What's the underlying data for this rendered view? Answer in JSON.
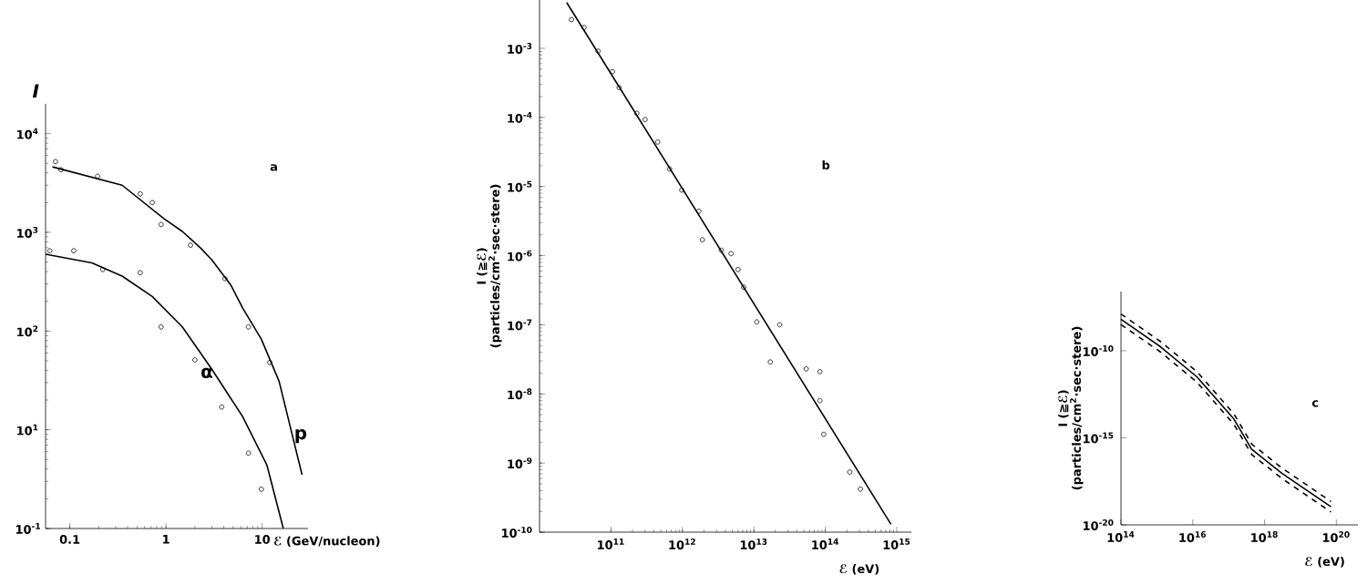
{
  "chart_data": [
    {
      "type": "line",
      "log": "xy",
      "xlabel": "ℰ (GeV/nucleon)",
      "ylabel": "I",
      "annotations": [
        "a",
        "10$^{-1}$"
      ],
      "legend": false,
      "marker": "none",
      "xlim": [
        0.056,
        30
      ],
      "ylim": [
        1,
        20000
      ],
      "xticks": [
        0.1,
        1,
        10
      ],
      "yticks": [
        {
          "value": 1,
          "label": null
        },
        {
          "value": 10,
          "label": "10$^{1}$"
        },
        {
          "value": 100,
          "label": "10$^{2}$"
        },
        {
          "value": 1000,
          "label": "10$^{3}$"
        },
        {
          "value": 10000,
          "label": "10$^{4}$"
        }
      ],
      "series": [
        {
          "name": "p",
          "type": "line",
          "color": "#000000",
          "x": [
            0.066,
            0.35,
            0.95,
            1.48,
            2.3,
            3.0,
            4.7,
            6.3,
            9.8,
            15,
            26
          ],
          "values": [
            4600,
            3000,
            1380,
            1020,
            690,
            525,
            295,
            170,
            83,
            31,
            3.5
          ]
        },
        {
          "name": "α",
          "type": "line",
          "color": "#000000",
          "x": [
            0.056,
            0.17,
            0.35,
            0.72,
            1.48,
            3.0,
            6.3,
            11.2,
            16.6
          ],
          "values": [
            600,
            490,
            360,
            224,
            110,
            41,
            13.5,
            4.4,
            1.0
          ]
        },
        {
          "type": "scatter",
          "marker": "circle",
          "color": "#000000",
          "x": [
            0.071,
            0.081,
            0.195,
            0.54,
            0.72,
            0.89,
            1.8,
            4.1,
            7.2,
            12
          ],
          "values": [
            5200,
            4300,
            3700,
            2450,
            2000,
            1200,
            740,
            340,
            110,
            48
          ]
        },
        {
          "type": "scatter",
          "marker": "circle",
          "color": "#000000",
          "x": [
            0.062,
            0.11,
            0.22,
            0.54,
            0.89,
            2.0,
            3.8,
            7.2,
            9.8
          ],
          "values": [
            650,
            650,
            420,
            390,
            110,
            51,
            17,
            5.8,
            2.5
          ]
        }
      ]
    },
    {
      "type": "scatter",
      "log": "xy",
      "xlabel": "ℰ (eV)",
      "ylabel": "I (≧ℰ) (particles/cm$^{2}$·sec·stere)",
      "annotations": [
        "b"
      ],
      "legend": false,
      "marker": "circle",
      "xlim": [
        10000000000.0,
        1600000000000000.0
      ],
      "ylim": [
        1e-10,
        0.005
      ],
      "xticks": [
        {
          "value": 100000000000.0,
          "label": "10$^{11}$"
        },
        {
          "value": 1000000000000.0,
          "label": "10$^{12}$"
        },
        {
          "value": 10000000000000.0,
          "label": "10$^{13}$"
        },
        {
          "value": 100000000000000.0,
          "label": "10$^{14}$"
        },
        {
          "value": 1000000000000000.0,
          "label": "10$^{15}$"
        }
      ],
      "yticks": [
        {
          "value": 1e-10,
          "label": "10$^{-10}$"
        },
        {
          "value": 1e-09,
          "label": "10$^{-9}$"
        },
        {
          "value": 1e-08,
          "label": "10$^{-8}$"
        },
        {
          "value": 1e-07,
          "label": "10$^{-7}$"
        },
        {
          "value": 1e-06,
          "label": "10$^{-6}$"
        },
        {
          "value": 1e-05,
          "label": "10$^{-5}$"
        },
        {
          "value": 0.0001,
          "label": "10$^{-4}$"
        },
        {
          "value": 0.001,
          "label": "10$^{-3}$"
        }
      ],
      "series": [
        {
          "type": "scatter",
          "color": "#000000",
          "x": [
            28000000000.0,
            42000000000.0,
            66000000000.0,
            105000000000.0,
            130000000000.0,
            230000000000.0,
            300000000000.0,
            450000000000.0,
            660000000000.0,
            980000000000.0,
            1700000000000.0,
            1900000000000.0,
            3500000000000.0,
            4800000000000.0,
            6000000000000.0,
            7200000000000.0,
            11000000000000.0,
            17000000000000.0,
            23000000000000.0,
            54000000000000.0,
            84000000000000.0,
            84000000000000.0,
            95000000000000.0,
            220000000000000.0,
            310000000000000.0
          ],
          "values": [
            0.0026,
            0.002,
            0.00091,
            0.00046,
            0.00027,
            0.000115,
            9.3e-05,
            4.4e-05,
            1.8e-05,
            8.9e-06,
            4.4e-06,
            1.7e-06,
            1.2e-06,
            1.07e-06,
            6.3e-07,
            3.5e-07,
            1.1e-07,
            2.9e-08,
            1e-07,
            2.3e-08,
            2.1e-08,
            8e-09,
            2.6e-09,
            7.4e-10,
            4.2e-10
          ]
        },
        {
          "type": "line",
          "marker": "none",
          "color": "#000000",
          "x": [
            24000000000.0,
            830000000000000.0
          ],
          "values": [
            0.0046,
            1.3e-10
          ]
        }
      ]
    },
    {
      "type": "line",
      "log": "xy",
      "xlabel": "ℰ (eV)",
      "ylabel": "I (≧ℰ) (particles/cm$^{2}$·sec·stere)",
      "annotations": [
        "c"
      ],
      "legend": false,
      "marker": "none",
      "xlim": [
        100000000000000.0,
        4e+20
      ],
      "ylim": [
        1e-20,
        2.5e-07
      ],
      "xticks": [
        {
          "value": 100000000000000.0,
          "label": "10$^{14}$"
        },
        {
          "value": 1e+16,
          "label": "10$^{16}$"
        },
        {
          "value": 1e+18,
          "label": "10$^{18}$"
        },
        {
          "value": 1e+20,
          "label": "10$^{20}$"
        }
      ],
      "yticks": [
        {
          "value": 1e-20,
          "label": "10$^{-20}$"
        },
        {
          "value": 1e-15,
          "label": "10$^{-15}$"
        },
        {
          "value": 1e-10,
          "label": "10$^{-10}$"
        }
      ],
      "series": [
        {
          "line_style": "dashed",
          "color": "#000000",
          "x": [
            100000000000000.0,
            1260000000000000.0,
            1.3e+16,
            1.4e+17,
            4.4e+17,
            3.1e+18,
            7.1e+19
          ],
          "values": [
            1.3e-08,
            3.4e-10,
            6.4e-12,
            2.4e-14,
            4.4e-16,
            1.8e-17,
            2.2e-19
          ]
        },
        {
          "line_style": "solid",
          "color": "#000000",
          "x": [
            100000000000000.0,
            1260000000000000.0,
            1.3e+16,
            1.4e+17,
            4.4e+17,
            3.1e+18,
            7.1e+19
          ],
          "values": [
            6.5e-09,
            1.7e-10,
            3.2e-12,
            1.2e-14,
            2.2e-16,
            8.9e-18,
            1.1e-19
          ]
        },
        {
          "line_style": "dashed",
          "color": "#000000",
          "x": [
            100000000000000.0,
            1260000000000000.0,
            1.3e+16,
            1.4e+17,
            4.4e+17,
            3.1e+18,
            7.1e+19
          ],
          "values": [
            3.2e-09,
            8.5e-11,
            1.6e-12,
            6e-15,
            1.1e-16,
            4.5e-18,
            5.5e-20
          ]
        }
      ]
    }
  ]
}
